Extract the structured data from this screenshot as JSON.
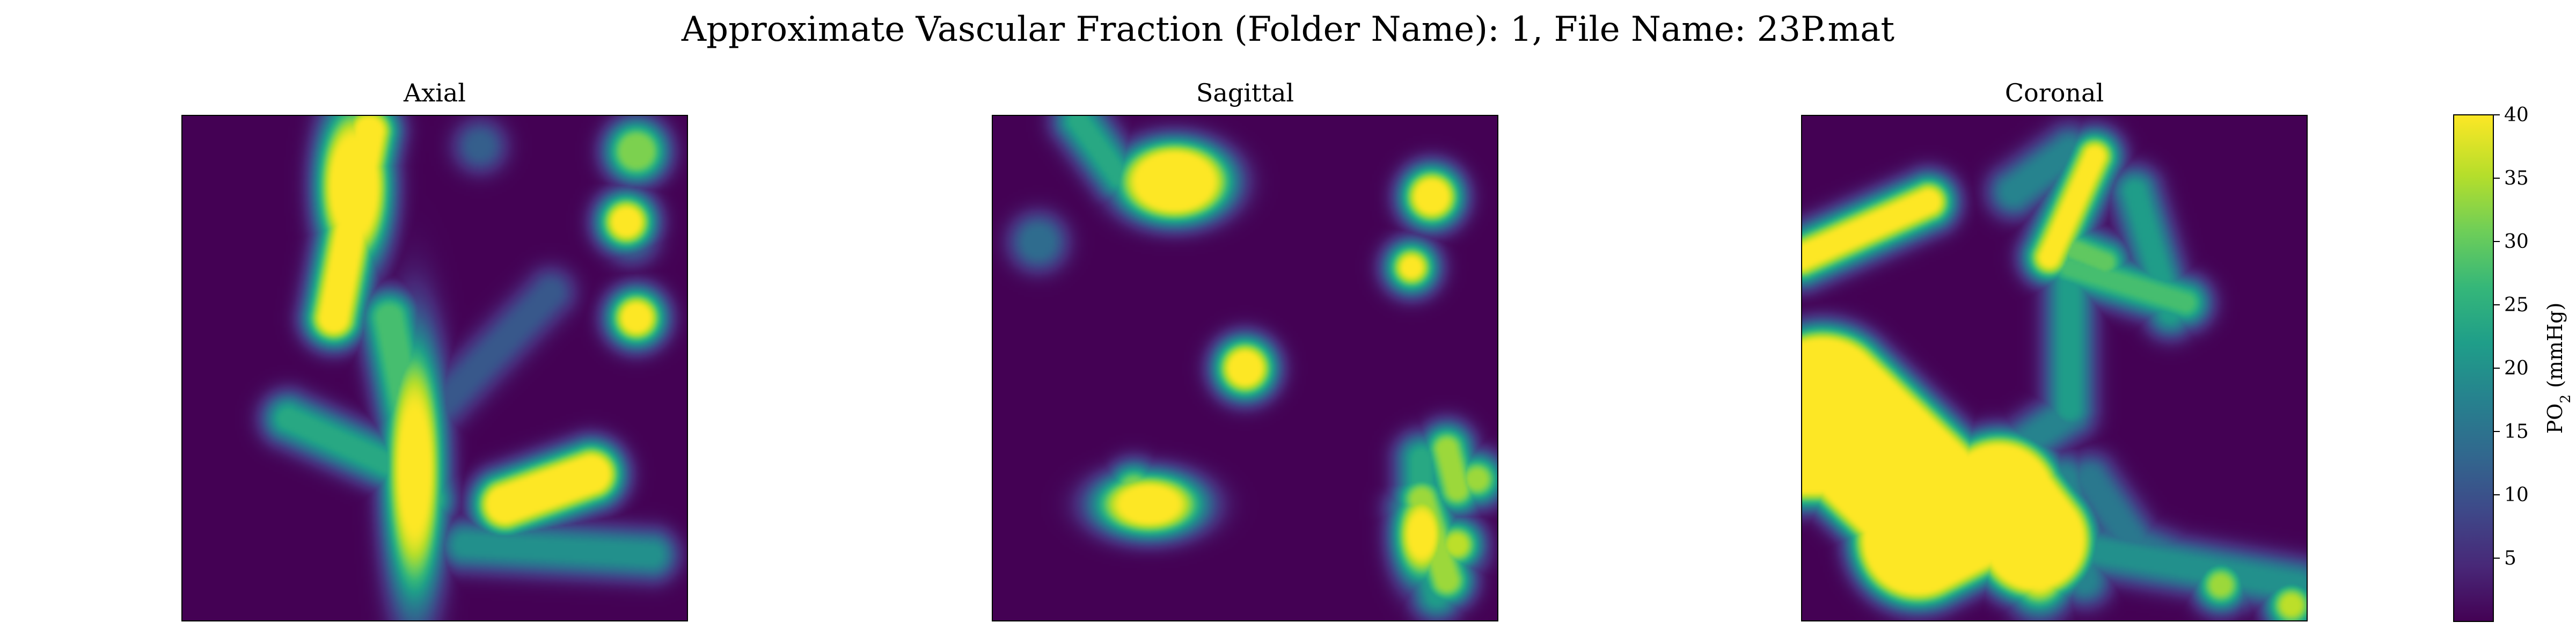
{
  "figure": {
    "suptitle": "Approximate Vascular Fraction (Folder Name): 1, File Name: 23P.mat"
  },
  "chart_data": {
    "type": "heatmap",
    "title": "Approximate Vascular Fraction (Folder Name): 1, File Name: 23P.mat",
    "colormap": "viridis",
    "panels": [
      {
        "title": "Axial",
        "xlabel": "",
        "ylabel": "",
        "axes_visible": false
      },
      {
        "title": "Sagittal",
        "xlabel": "",
        "ylabel": "",
        "axes_visible": false
      },
      {
        "title": "Coronal",
        "xlabel": "",
        "ylabel": "",
        "axes_visible": false
      }
    ],
    "colorbar": {
      "label": "PO₂ (mmHg)",
      "label_main": "PO",
      "label_sub": "2",
      "label_unit": " (mmHg)",
      "range": [
        0,
        40
      ],
      "ticks": [
        5,
        10,
        15,
        20,
        25,
        30,
        35,
        40
      ],
      "tick_labels": [
        "5",
        "10",
        "15",
        "20",
        "25",
        "30",
        "35",
        "40"
      ]
    },
    "structures": [
      [
        {
          "kind": "segment",
          "from": [
            0.3,
            0.4
          ],
          "to": [
            0.37,
            0.03
          ],
          "core_width": 0.02,
          "peak": 40
        },
        {
          "kind": "blob",
          "center": [
            0.34,
            0.14
          ],
          "radius": [
            0.04,
            0.09
          ],
          "peak": 40
        },
        {
          "kind": "blob",
          "center": [
            0.46,
            0.7
          ],
          "radius": [
            0.025,
            0.11
          ],
          "peak": 40
        },
        {
          "kind": "segment",
          "from": [
            0.21,
            0.6
          ],
          "to": [
            0.43,
            0.7
          ],
          "core_width": 0.012,
          "peak": 24
        },
        {
          "kind": "segment",
          "from": [
            0.41,
            0.4
          ],
          "to": [
            0.48,
            0.76
          ],
          "core_width": 0.018,
          "peak": 28
        },
        {
          "kind": "segment",
          "from": [
            0.64,
            0.77
          ],
          "to": [
            0.81,
            0.71
          ],
          "core_width": 0.028,
          "peak": 40
        },
        {
          "kind": "segment",
          "from": [
            0.93,
            0.87
          ],
          "to": [
            0.56,
            0.85
          ],
          "core_width": 0.011,
          "peak": 20
        },
        {
          "kind": "segment",
          "from": [
            0.43,
            0.66
          ],
          "to": [
            0.73,
            0.35
          ],
          "core_width": 0.01,
          "peak": 11
        },
        {
          "kind": "blob",
          "center": [
            0.88,
            0.21
          ],
          "radius": [
            0.02,
            0.02
          ],
          "peak": 40
        },
        {
          "kind": "blob",
          "center": [
            0.89,
            0.24
          ],
          "radius": [
            0.015,
            0.015
          ],
          "peak": 14
        },
        {
          "kind": "blob",
          "center": [
            0.9,
            0.4
          ],
          "radius": [
            0.02,
            0.02
          ],
          "peak": 40
        },
        {
          "kind": "blob",
          "center": [
            0.9,
            0.07
          ],
          "radius": [
            0.025,
            0.025
          ],
          "peak": 32
        },
        {
          "kind": "blob",
          "center": [
            0.59,
            0.06
          ],
          "radius": [
            0.014,
            0.014
          ],
          "peak": 12
        }
      ],
      [
        {
          "kind": "blob",
          "center": [
            0.36,
            0.13
          ],
          "radius": [
            0.07,
            0.05
          ],
          "peak": 40
        },
        {
          "kind": "blob",
          "center": [
            0.31,
            0.77
          ],
          "radius": [
            0.05,
            0.03
          ],
          "peak": 40
        },
        {
          "kind": "segment",
          "from": [
            0.28,
            0.74
          ],
          "to": [
            0.36,
            0.78
          ],
          "core_width": 0.014,
          "peak": 32
        },
        {
          "kind": "blob",
          "center": [
            0.5,
            0.5
          ],
          "radius": [
            0.025,
            0.025
          ],
          "peak": 40
        },
        {
          "kind": "blob",
          "center": [
            0.87,
            0.16
          ],
          "radius": [
            0.025,
            0.025
          ],
          "peak": 40
        },
        {
          "kind": "blob",
          "center": [
            0.83,
            0.3
          ],
          "radius": [
            0.012,
            0.012
          ],
          "peak": 40
        },
        {
          "kind": "segment",
          "from": [
            0.17,
            0.01
          ],
          "to": [
            0.25,
            0.12
          ],
          "core_width": 0.01,
          "peak": 24
        },
        {
          "kind": "blob",
          "center": [
            0.09,
            0.25
          ],
          "radius": [
            0.02,
            0.02
          ],
          "peak": 14
        },
        {
          "kind": "blob",
          "center": [
            0.85,
            0.83
          ],
          "radius": [
            0.02,
            0.035
          ],
          "peak": 40
        },
        {
          "kind": "segment",
          "from": [
            0.85,
            0.76
          ],
          "to": [
            0.9,
            0.92
          ],
          "core_width": 0.013,
          "peak": 34
        },
        {
          "kind": "blob",
          "center": [
            0.92,
            0.85
          ],
          "radius": [
            0.012,
            0.012
          ],
          "peak": 36
        },
        {
          "kind": "segment",
          "from": [
            0.85,
            0.68
          ],
          "to": [
            0.85,
            0.8
          ],
          "core_width": 0.012,
          "peak": 24
        },
        {
          "kind": "segment",
          "from": [
            0.84,
            0.78
          ],
          "to": [
            0.88,
            0.95
          ],
          "core_width": 0.01,
          "peak": 22
        },
        {
          "kind": "blob",
          "center": [
            0.96,
            0.72
          ],
          "radius": [
            0.012,
            0.012
          ],
          "peak": 34
        },
        {
          "kind": "segment",
          "from": [
            0.9,
            0.66
          ],
          "to": [
            0.92,
            0.74
          ],
          "core_width": 0.011,
          "peak": 34
        },
        {
          "kind": "segment",
          "from": [
            0.83,
            0.78
          ],
          "to": [
            0.93,
            0.86
          ],
          "core_width": 0.01,
          "peak": 20
        }
      ],
      [
        {
          "kind": "segment",
          "from": [
            0.0,
            0.28
          ],
          "to": [
            0.25,
            0.17
          ],
          "core_width": 0.015,
          "peak": 40
        },
        {
          "kind": "segment",
          "from": [
            0.42,
            0.15
          ],
          "to": [
            0.53,
            0.07
          ],
          "core_width": 0.012,
          "peak": 18
        },
        {
          "kind": "segment",
          "from": [
            0.49,
            0.28
          ],
          "to": [
            0.58,
            0.08
          ],
          "core_width": 0.011,
          "peak": 40
        },
        {
          "kind": "segment",
          "from": [
            0.53,
            0.29
          ],
          "to": [
            0.53,
            0.58
          ],
          "core_width": 0.01,
          "peak": 22
        },
        {
          "kind": "segment",
          "from": [
            0.53,
            0.3
          ],
          "to": [
            0.76,
            0.37
          ],
          "core_width": 0.01,
          "peak": 28
        },
        {
          "kind": "segment",
          "from": [
            0.66,
            0.15
          ],
          "to": [
            0.73,
            0.39
          ],
          "core_width": 0.009,
          "peak": 22
        },
        {
          "kind": "segment",
          "from": [
            0.5,
            0.25
          ],
          "to": [
            0.6,
            0.29
          ],
          "core_width": 0.009,
          "peak": 30
        },
        {
          "kind": "segment",
          "from": [
            0.0,
            0.62
          ],
          "to": [
            0.03,
            0.62
          ],
          "core_width": 0.12,
          "peak": 40
        },
        {
          "kind": "segment",
          "from": [
            0.04,
            0.57
          ],
          "to": [
            0.26,
            0.78
          ],
          "core_width": 0.12,
          "peak": 40
        },
        {
          "kind": "segment",
          "from": [
            0.23,
            0.84
          ],
          "to": [
            0.39,
            0.76
          ],
          "core_width": 0.1,
          "peak": 40
        },
        {
          "kind": "segment",
          "from": [
            0.39,
            0.75
          ],
          "to": [
            0.46,
            0.84
          ],
          "core_width": 0.09,
          "peak": 40
        },
        {
          "kind": "segment",
          "from": [
            0.44,
            0.65
          ],
          "to": [
            0.53,
            0.59
          ],
          "core_width": 0.011,
          "peak": 18
        },
        {
          "kind": "blob",
          "center": [
            0.47,
            0.88
          ],
          "radius": [
            0.035,
            0.05
          ],
          "peak": 40
        },
        {
          "kind": "segment",
          "from": [
            0.52,
            0.72
          ],
          "to": [
            0.56,
            0.92
          ],
          "core_width": 0.012,
          "peak": 18
        },
        {
          "kind": "segment",
          "from": [
            0.57,
            0.72
          ],
          "to": [
            0.68,
            0.88
          ],
          "core_width": 0.012,
          "peak": 16
        },
        {
          "kind": "segment",
          "from": [
            0.68,
            0.86
          ],
          "to": [
            0.86,
            0.93
          ],
          "core_width": 0.011,
          "peak": 16
        },
        {
          "kind": "segment",
          "from": [
            0.57,
            0.86
          ],
          "to": [
            0.98,
            0.93
          ],
          "core_width": 0.012,
          "peak": 20
        },
        {
          "kind": "segment",
          "from": [
            0.62,
            0.83
          ],
          "to": [
            0.68,
            0.86
          ],
          "core_width": 0.01,
          "peak": 14
        },
        {
          "kind": "blob",
          "center": [
            0.83,
            0.93
          ],
          "radius": [
            0.012,
            0.012
          ],
          "peak": 34
        },
        {
          "kind": "blob",
          "center": [
            0.97,
            0.97
          ],
          "radius": [
            0.012,
            0.012
          ],
          "peak": 36
        }
      ]
    ]
  }
}
